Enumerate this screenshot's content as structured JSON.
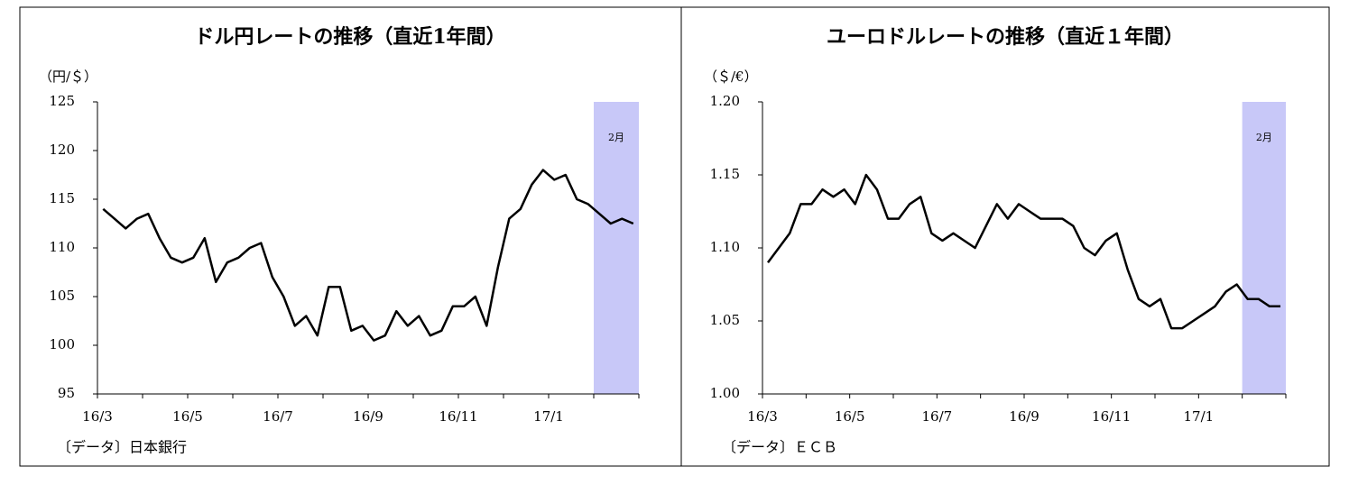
{
  "chart_data": [
    {
      "type": "line",
      "title": "ドル円レートの推移（直近1年間）",
      "y_label": "（円/＄）",
      "source": "〔データ〕日本銀行",
      "categories": [
        "16/3",
        null,
        null,
        null,
        null,
        null,
        null,
        null,
        "16/5",
        null,
        null,
        null,
        null,
        null,
        null,
        null,
        "16/7",
        null,
        null,
        null,
        null,
        null,
        null,
        null,
        "16/9",
        null,
        null,
        null,
        null,
        null,
        null,
        null,
        "16/11",
        null,
        null,
        null,
        null,
        null,
        null,
        null,
        "17/1",
        null,
        null,
        null,
        null,
        null,
        null,
        null
      ],
      "series": [
        {
          "color": "#000000",
          "values": [
            114,
            113,
            112,
            113,
            113.5,
            111,
            109,
            108.5,
            109,
            111,
            106.5,
            108.5,
            109,
            110,
            110.5,
            107,
            105,
            102,
            103,
            101,
            106,
            106,
            101.5,
            102,
            100.5,
            101,
            103.5,
            102,
            103,
            101,
            101.5,
            104,
            104,
            105,
            102,
            108,
            113,
            114,
            116.5,
            118,
            117,
            117.5,
            115,
            114.5,
            113.5,
            112.5,
            113,
            112.5
          ]
        }
      ],
      "ylim": [
        95,
        125
      ],
      "yticks": [
        95,
        100,
        105,
        110,
        115,
        120,
        125
      ],
      "shade_label": "2月",
      "shade_from": 44,
      "shade_color": "#c8c8f8"
    },
    {
      "type": "line",
      "title": "ユーロドルレートの推移（直近１年間）",
      "y_label": "（＄/€）",
      "source": "〔データ〕ＥＣＢ",
      "categories": [
        "16/3",
        null,
        null,
        null,
        null,
        null,
        null,
        null,
        "16/5",
        null,
        null,
        null,
        null,
        null,
        null,
        null,
        "16/7",
        null,
        null,
        null,
        null,
        null,
        null,
        null,
        "16/9",
        null,
        null,
        null,
        null,
        null,
        null,
        null,
        "16/11",
        null,
        null,
        null,
        null,
        null,
        null,
        null,
        "17/1",
        null,
        null,
        null,
        null,
        null,
        null,
        null
      ],
      "series": [
        {
          "color": "#000000",
          "values": [
            1.09,
            1.1,
            1.11,
            1.13,
            1.13,
            1.14,
            1.135,
            1.14,
            1.13,
            1.15,
            1.14,
            1.12,
            1.12,
            1.13,
            1.135,
            1.11,
            1.105,
            1.11,
            1.105,
            1.1,
            1.115,
            1.13,
            1.12,
            1.13,
            1.125,
            1.12,
            1.12,
            1.12,
            1.115,
            1.1,
            1.095,
            1.105,
            1.11,
            1.085,
            1.065,
            1.06,
            1.065,
            1.045,
            1.045,
            1.05,
            1.055,
            1.06,
            1.07,
            1.075,
            1.065,
            1.065,
            1.06,
            1.06
          ]
        }
      ],
      "ylim": [
        1.0,
        1.2
      ],
      "yticks": [
        {
          "value": 1.0,
          "label": "1.00"
        },
        1.05,
        {
          "value": 1.1,
          "label": "1.10"
        },
        1.15,
        {
          "value": 1.2,
          "label": "1.20"
        }
      ],
      "shade_label": "2月",
      "shade_from": 44,
      "shade_color": "#c8c8f8"
    }
  ]
}
